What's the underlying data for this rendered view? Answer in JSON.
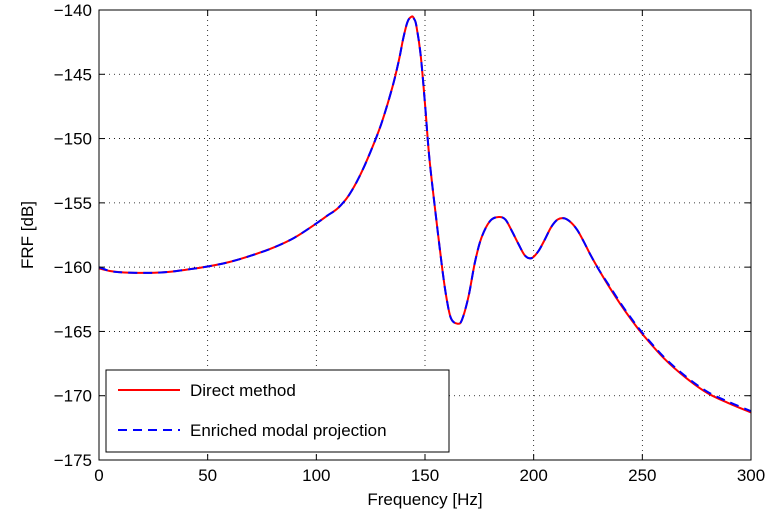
{
  "chart_data": {
    "type": "line",
    "title": "",
    "xlabel": "Frequency [Hz]",
    "ylabel": "FRF [dB]",
    "xlim": [
      0,
      300
    ],
    "ylim": [
      -175,
      -140
    ],
    "xticks": [
      0,
      50,
      100,
      150,
      200,
      250,
      300
    ],
    "yticks": [
      -175,
      -170,
      -165,
      -160,
      -155,
      -150,
      -145,
      -140
    ],
    "xtick_labels": [
      "0",
      "50",
      "100",
      "150",
      "200",
      "250",
      "300"
    ],
    "ytick_labels": [
      "−175",
      "−170",
      "−165",
      "−160",
      "−155",
      "−150",
      "−145",
      "−140"
    ],
    "grid": true,
    "legend_position": "bottom-left",
    "series": [
      {
        "name": "Direct method",
        "color": "#ff0000",
        "style": "solid",
        "x": [
          0,
          5,
          10,
          20,
          30,
          40,
          50,
          60,
          70,
          80,
          90,
          100,
          105,
          110,
          115,
          120,
          125,
          130,
          135,
          138,
          140,
          142,
          144,
          145,
          146,
          148,
          150,
          152,
          155,
          158,
          160,
          162,
          165,
          167,
          170,
          173,
          176,
          180,
          184,
          187,
          190,
          193,
          196,
          199,
          202,
          205,
          208,
          211,
          214,
          217,
          220,
          223,
          226,
          230,
          235,
          240,
          245,
          250,
          260,
          270,
          280,
          290,
          300
        ],
        "y": [
          -160.1,
          -160.3,
          -160.4,
          -160.45,
          -160.4,
          -160.2,
          -159.95,
          -159.6,
          -159.1,
          -158.5,
          -157.7,
          -156.6,
          -156.0,
          -155.4,
          -154.4,
          -152.9,
          -151.0,
          -148.8,
          -146.0,
          -143.9,
          -142.2,
          -140.9,
          -140.5,
          -140.7,
          -141.2,
          -143.5,
          -147.3,
          -151.5,
          -156.0,
          -160.2,
          -162.5,
          -164.0,
          -164.4,
          -164.1,
          -162.3,
          -159.6,
          -157.7,
          -156.4,
          -156.1,
          -156.3,
          -157.2,
          -158.2,
          -159.1,
          -159.3,
          -158.8,
          -157.9,
          -156.9,
          -156.3,
          -156.2,
          -156.5,
          -157.1,
          -158.0,
          -159.0,
          -160.2,
          -161.6,
          -162.9,
          -164.1,
          -165.2,
          -167.1,
          -168.6,
          -169.8,
          -170.6,
          -171.3
        ]
      },
      {
        "name": "Enriched modal projection",
        "color": "#0000ff",
        "style": "dashed",
        "x": [
          0,
          5,
          10,
          20,
          30,
          40,
          50,
          60,
          70,
          80,
          90,
          100,
          105,
          110,
          115,
          120,
          125,
          130,
          135,
          138,
          140,
          142,
          144,
          145,
          146,
          148,
          150,
          152,
          155,
          158,
          160,
          162,
          165,
          167,
          170,
          173,
          176,
          180,
          184,
          187,
          190,
          193,
          196,
          199,
          202,
          205,
          208,
          211,
          214,
          217,
          220,
          223,
          226,
          230,
          235,
          240,
          245,
          250,
          260,
          270,
          280,
          290,
          300
        ],
        "y": [
          -160.0,
          -160.3,
          -160.4,
          -160.45,
          -160.4,
          -160.2,
          -159.95,
          -159.6,
          -159.1,
          -158.5,
          -157.7,
          -156.6,
          -156.0,
          -155.4,
          -154.4,
          -152.9,
          -151.0,
          -148.8,
          -146.0,
          -143.9,
          -142.2,
          -140.9,
          -140.5,
          -140.7,
          -141.2,
          -143.5,
          -147.3,
          -151.5,
          -156.0,
          -160.2,
          -162.5,
          -164.0,
          -164.4,
          -164.1,
          -162.3,
          -159.6,
          -157.7,
          -156.4,
          -156.1,
          -156.3,
          -157.2,
          -158.2,
          -159.1,
          -159.3,
          -158.8,
          -157.9,
          -156.9,
          -156.3,
          -156.2,
          -156.5,
          -157.1,
          -158.0,
          -159.0,
          -160.2,
          -161.5,
          -162.8,
          -164.0,
          -165.1,
          -167.0,
          -168.5,
          -169.7,
          -170.5,
          -171.2
        ]
      }
    ]
  }
}
